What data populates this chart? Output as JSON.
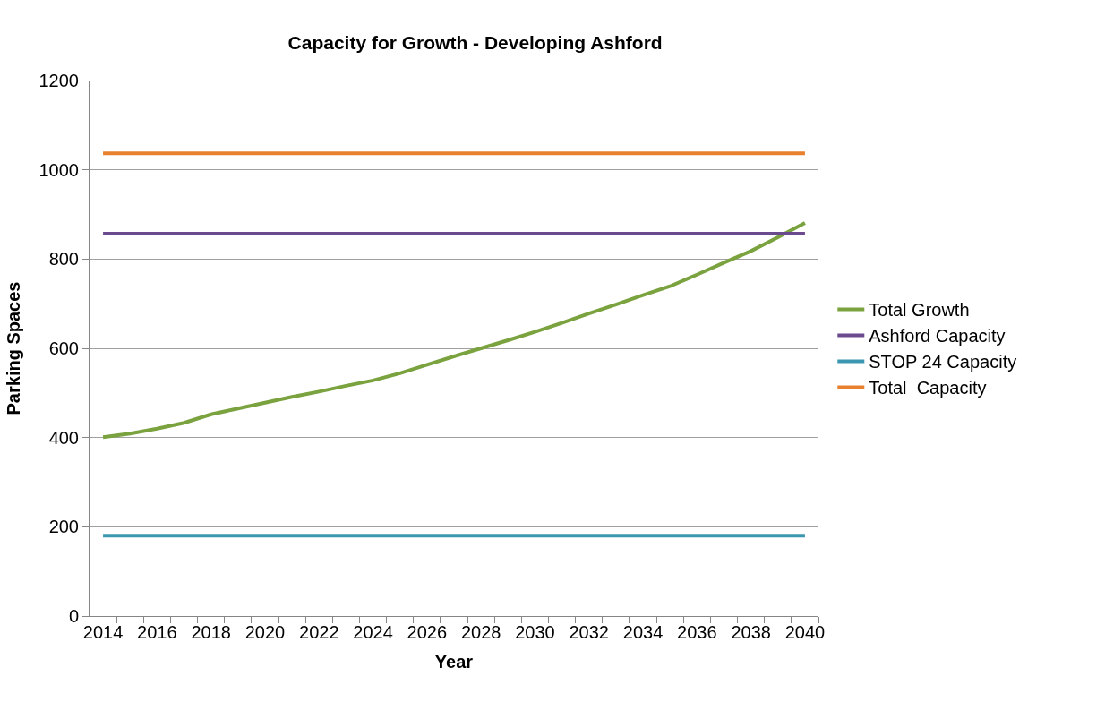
{
  "chart_data": {
    "type": "line",
    "title": "Capacity for Growth - Developing Ashford",
    "xlabel": "Year",
    "ylabel": "Parking Spaces",
    "categories": [
      "2014",
      null,
      "2016",
      null,
      "2018",
      null,
      "2020",
      null,
      "2022",
      null,
      "2024",
      null,
      "2026",
      null,
      "2028",
      null,
      "2030",
      null,
      "2032",
      null,
      "2034",
      null,
      "2036",
      null,
      "2038",
      null,
      "2040"
    ],
    "series": [
      {
        "name": "Total Growth",
        "color": "#7aa23e",
        "values": [
          401,
          409,
          420,
          433,
          452,
          465,
          478,
          491,
          503,
          516,
          528,
          544,
          563,
          582,
          600,
          618,
          637,
          657,
          678,
          698,
          719,
          739,
          765,
          792,
          818,
          849,
          881
        ]
      },
      {
        "name": "Ashford Capacity",
        "color": "#6b4a8e",
        "values": [
          857,
          857,
          857,
          857,
          857,
          857,
          857,
          857,
          857,
          857,
          857,
          857,
          857,
          857,
          857,
          857,
          857,
          857,
          857,
          857,
          857,
          857,
          857,
          857,
          857,
          857,
          857
        ]
      },
      {
        "name": "STOP 24 Capacity",
        "color": "#3b97b0",
        "values": [
          180,
          180,
          180,
          180,
          180,
          180,
          180,
          180,
          180,
          180,
          180,
          180,
          180,
          180,
          180,
          180,
          180,
          180,
          180,
          180,
          180,
          180,
          180,
          180,
          180,
          180,
          180
        ]
      },
      {
        "name": "Total  Capacity",
        "color": "#e8802e",
        "values": [
          1037,
          1037,
          1037,
          1037,
          1037,
          1037,
          1037,
          1037,
          1037,
          1037,
          1037,
          1037,
          1037,
          1037,
          1037,
          1037,
          1037,
          1037,
          1037,
          1037,
          1037,
          1037,
          1037,
          1037,
          1037,
          1037,
          1037
        ]
      }
    ],
    "ylim": [
      0,
      1200
    ],
    "yticks": [
      0,
      200,
      400,
      600,
      800,
      1000,
      1200
    ],
    "grid": "y",
    "legend": "right",
    "marker": "none",
    "line_style": "solid"
  }
}
